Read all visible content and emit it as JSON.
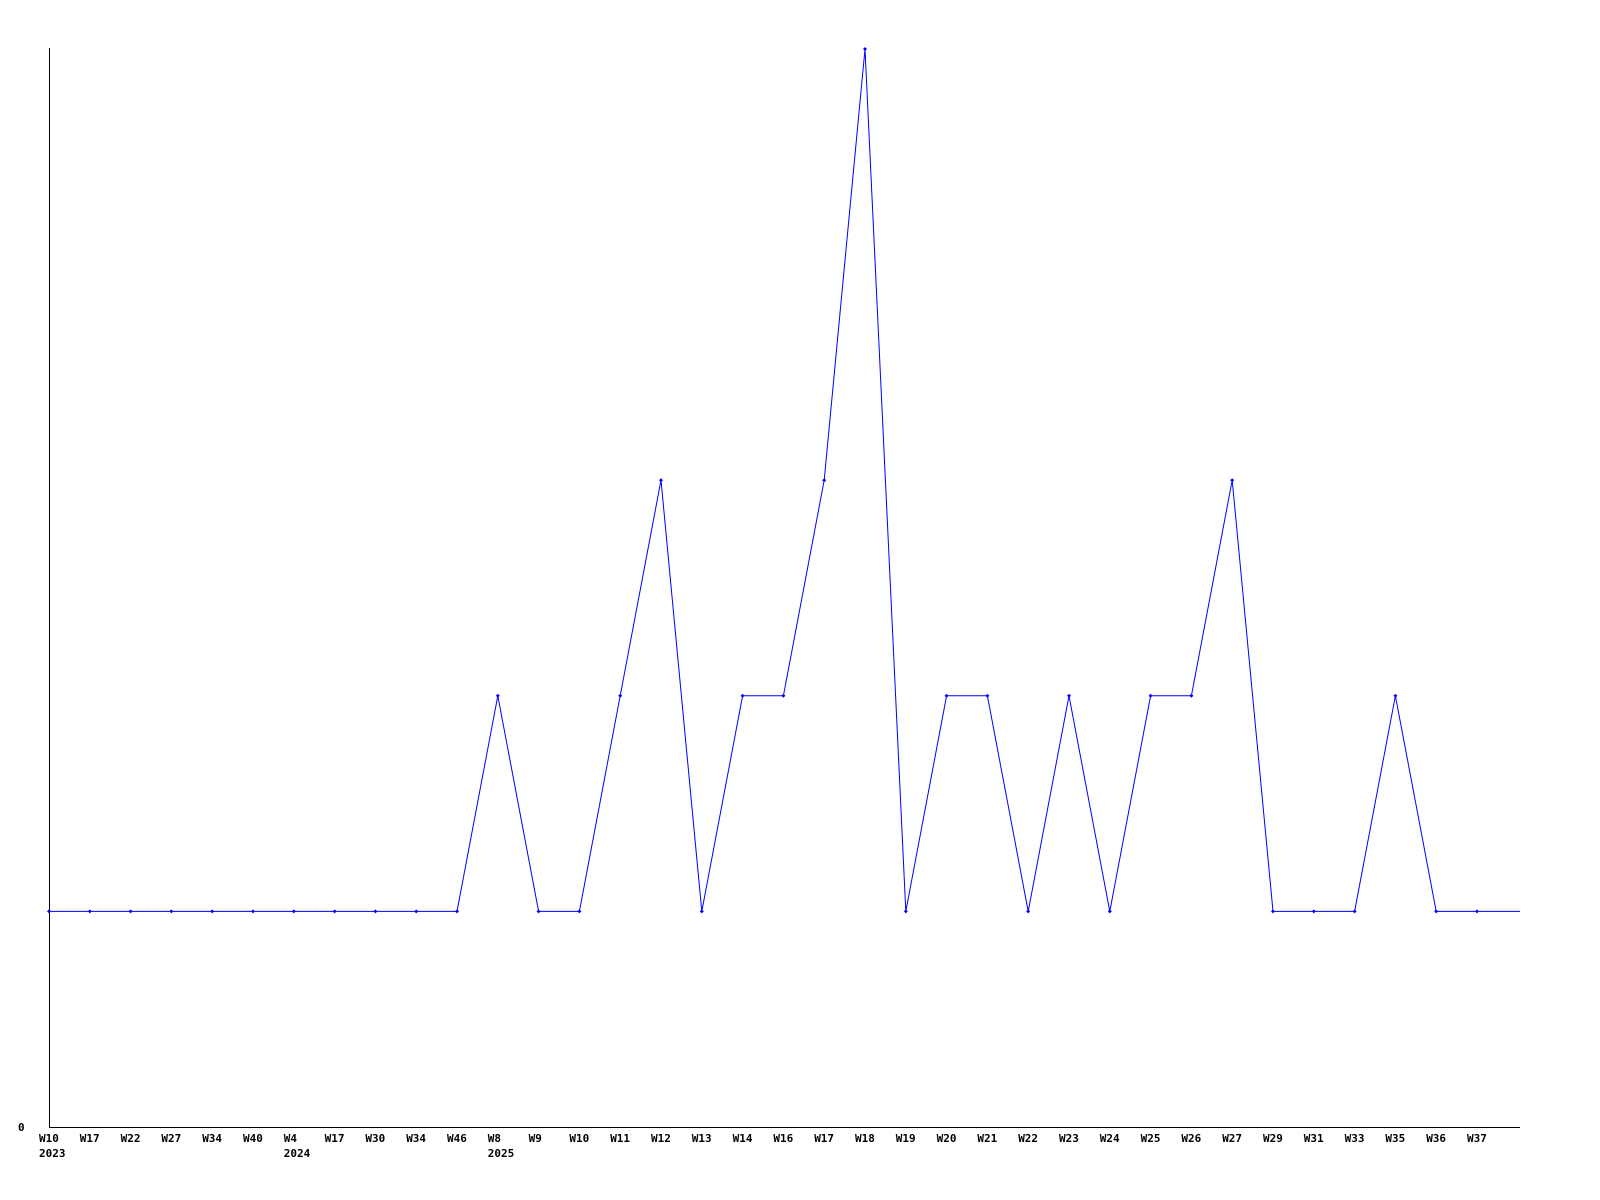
{
  "chart_data": {
    "type": "line",
    "title": "",
    "xlabel": "",
    "ylabel": "",
    "y_tick_labels": [
      "0"
    ],
    "ylim": [
      0,
      5
    ],
    "grid": false,
    "line_color": "#0000ff",
    "axis_color": "#000000",
    "categories": [
      "W10",
      "W17",
      "W22",
      "W27",
      "W34",
      "W40",
      "W4",
      "W17",
      "W30",
      "W34",
      "W46",
      "W8",
      "W9",
      "W10",
      "W11",
      "W12",
      "W13",
      "W14",
      "W16",
      "W17",
      "W18",
      "W19",
      "W20",
      "W21",
      "W22",
      "W23",
      "W24",
      "W25",
      "W26",
      "W27",
      "W29",
      "W31",
      "W33",
      "W35",
      "W36",
      "W37"
    ],
    "year_labels": [
      {
        "index": 0,
        "label": "2023"
      },
      {
        "index": 6,
        "label": "2024"
      },
      {
        "index": 11,
        "label": "2025"
      }
    ],
    "values": [
      1,
      1,
      1,
      1,
      1,
      1,
      1,
      1,
      1,
      1,
      1,
      2,
      1,
      1,
      2,
      3,
      1,
      2,
      2,
      3,
      5,
      1,
      2,
      2,
      1,
      2,
      1,
      2,
      2,
      3,
      1,
      1,
      1,
      2,
      1,
      1
    ]
  }
}
